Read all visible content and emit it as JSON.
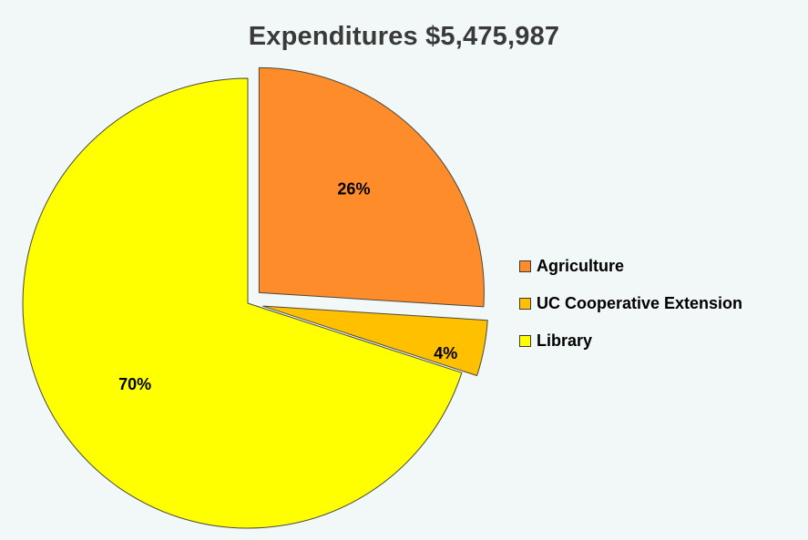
{
  "chart_data": {
    "type": "pie",
    "title": "Expenditures $5,475,987",
    "series": [
      {
        "values": [
          26,
          4,
          70
        ]
      }
    ],
    "categories": [
      "Agriculture",
      "UC Cooperative Extension",
      "Library"
    ],
    "slices": [
      {
        "label": "Agriculture",
        "percent": 26,
        "value_label": "26%",
        "color": "#ff8c2a",
        "exploded": true
      },
      {
        "label": "UC Cooperative Extension",
        "percent": 4,
        "value_label": "4%",
        "color": "#ffc000",
        "exploded": true
      },
      {
        "label": "Library",
        "percent": 70,
        "value_label": "70%",
        "color": "#ffff00",
        "exploded": false
      }
    ],
    "legend": {
      "position": "right",
      "items": [
        "Agriculture",
        "UC Cooperative Extension",
        "Library"
      ]
    },
    "background_color": "#f2f8f8",
    "grid": false
  }
}
